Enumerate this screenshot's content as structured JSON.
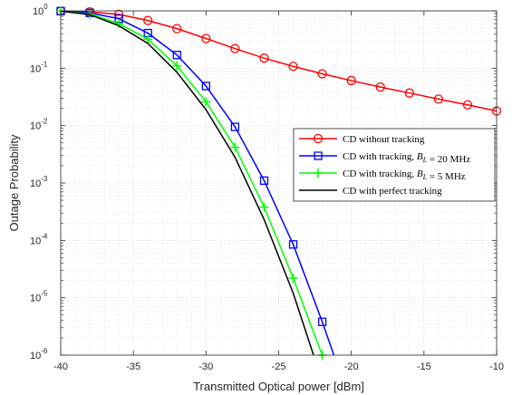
{
  "chart_data": {
    "type": "line",
    "xlabel": "Transmitted Optical power [dBm]",
    "ylabel": "Outage Probability",
    "xlim": [
      -40,
      -10
    ],
    "ylim": [
      1e-06,
      1
    ],
    "yscale": "log",
    "grid": true,
    "minor_grid": true,
    "legend_position": "center-right",
    "x_ticks": [
      -40,
      -35,
      -30,
      -25,
      -20,
      -15,
      -10
    ],
    "x_tick_labels": [
      "-40",
      "-35",
      "-30",
      "-25",
      "-20",
      "-15",
      "-10"
    ],
    "y_ticks": [
      {
        "value": 1,
        "base": "10",
        "exp": "0"
      },
      {
        "value": 0.1,
        "base": "10",
        "exp": "-1"
      },
      {
        "value": 0.01,
        "base": "10",
        "exp": "-2"
      },
      {
        "value": 0.001,
        "base": "10",
        "exp": "-3"
      },
      {
        "value": 0.0001,
        "base": "10",
        "exp": "-4"
      },
      {
        "value": 1e-05,
        "base": "10",
        "exp": "-5"
      },
      {
        "value": 1e-06,
        "base": "10",
        "exp": "-6"
      }
    ],
    "series": [
      {
        "name": "CD without tracking",
        "legend_parts": [
          {
            "text": "CD without tracking",
            "italic": false
          }
        ],
        "color": "#ff0000",
        "marker": "circle",
        "x": [
          -40,
          -38,
          -36,
          -34,
          -32,
          -30,
          -28,
          -26,
          -24,
          -22,
          -20,
          -18,
          -16,
          -14,
          -12,
          -10
        ],
        "y": [
          0.99,
          0.96,
          0.87,
          0.68,
          0.49,
          0.33,
          0.22,
          0.15,
          0.108,
          0.08,
          0.061,
          0.047,
          0.037,
          0.029,
          0.023,
          0.018
        ]
      },
      {
        "name": "CD with tracking, B_L = 20 MHz",
        "legend_parts": [
          {
            "text": "CD with tracking, ",
            "italic": false
          },
          {
            "text": "B",
            "italic": true
          },
          {
            "text": "L",
            "italic": true,
            "sub": true
          },
          {
            "text": " = 20 MHz",
            "italic": false
          }
        ],
        "color": "#0000ff",
        "marker": "square",
        "x": [
          -40,
          -38,
          -36,
          -34,
          -32,
          -30,
          -28,
          -26,
          -24,
          -22,
          -21.2
        ],
        "y": [
          0.99,
          0.92,
          0.73,
          0.41,
          0.17,
          0.049,
          0.0095,
          0.0011,
          8.5e-05,
          3.8e-06,
          1e-06
        ],
        "marker_count": 10
      },
      {
        "name": "CD with tracking, B_L = 5 MHz",
        "legend_parts": [
          {
            "text": "CD with tracking, ",
            "italic": false
          },
          {
            "text": "B",
            "italic": true
          },
          {
            "text": "L",
            "italic": true,
            "sub": true
          },
          {
            "text": " = 5 MHz",
            "italic": false
          }
        ],
        "color": "#00ff00",
        "marker": "plus",
        "x": [
          -40,
          -38,
          -36,
          -34,
          -32,
          -30,
          -28,
          -26,
          -24,
          -22
        ],
        "y": [
          0.99,
          0.88,
          0.6,
          0.32,
          0.11,
          0.026,
          0.0042,
          0.00038,
          2.2e-05,
          1e-06
        ],
        "marker_count": 10
      },
      {
        "name": "CD with perfect tracking",
        "legend_parts": [
          {
            "text": "CD with perfect tracking",
            "italic": false
          }
        ],
        "color": "#000000",
        "marker": "none",
        "x": [
          -40,
          -38,
          -36,
          -34,
          -32,
          -30,
          -28,
          -26,
          -24,
          -22.6
        ],
        "y": [
          0.99,
          0.86,
          0.55,
          0.27,
          0.085,
          0.019,
          0.0028,
          0.00023,
          1.2e-05,
          1e-06
        ]
      }
    ]
  }
}
